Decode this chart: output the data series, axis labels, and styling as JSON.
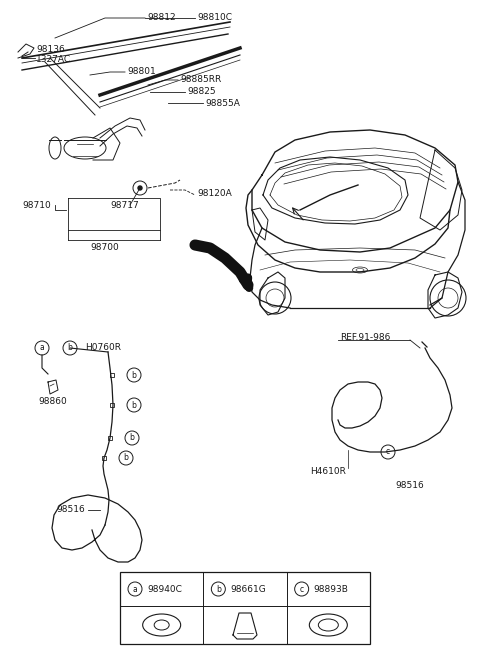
{
  "bg_color": "#ffffff",
  "line_color": "#1a1a1a",
  "fig_width": 4.8,
  "fig_height": 6.56,
  "dpi": 100,
  "legend": [
    {
      "label": "a",
      "part": "98940C"
    },
    {
      "label": "b",
      "part": "98661G"
    },
    {
      "label": "c",
      "part": "98893B"
    }
  ]
}
